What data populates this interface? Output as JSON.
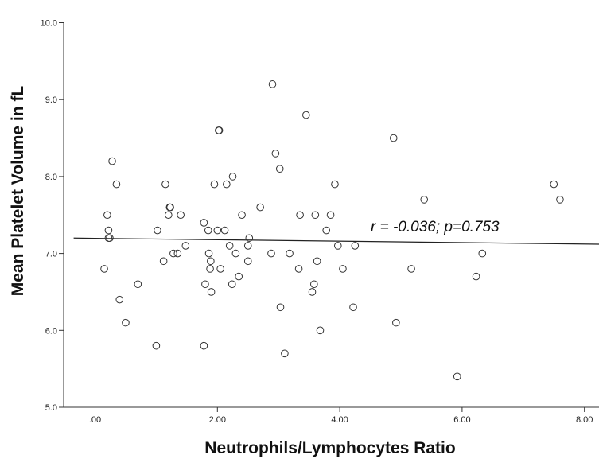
{
  "chart_data": {
    "type": "scatter",
    "xlabel": "Neutrophils/Lymphocytes Ratio",
    "ylabel": "Mean Platelet Volume in fL",
    "xlim": [
      -0.35,
      8.35
    ],
    "ylim": [
      5.0,
      10.0
    ],
    "x_ticks": [
      0,
      2,
      4,
      6,
      8
    ],
    "x_tick_labels": [
      ".00",
      "2.00",
      "4.00",
      "6.00",
      "8.00"
    ],
    "y_ticks": [
      5,
      6,
      7,
      8,
      9,
      10
    ],
    "y_tick_labels": [
      "5.0",
      "6.0",
      "7.0",
      "8.0",
      "9.0",
      "10.0"
    ],
    "grid": false,
    "annotation": "r = -0.036; p=0.753",
    "fit_line": {
      "x": [
        -0.35,
        8.35
      ],
      "y": [
        7.2,
        7.12
      ]
    },
    "points": [
      [
        0.15,
        6.8
      ],
      [
        0.2,
        7.5
      ],
      [
        0.22,
        7.3
      ],
      [
        0.22,
        7.2
      ],
      [
        0.24,
        7.2
      ],
      [
        0.28,
        8.2
      ],
      [
        0.35,
        7.9
      ],
      [
        0.4,
        6.4
      ],
      [
        0.5,
        6.1
      ],
      [
        0.7,
        6.6
      ],
      [
        1.0,
        5.8
      ],
      [
        1.02,
        7.3
      ],
      [
        1.12,
        6.9
      ],
      [
        1.15,
        7.9
      ],
      [
        1.2,
        7.5
      ],
      [
        1.22,
        7.6
      ],
      [
        1.23,
        7.6
      ],
      [
        1.28,
        7.0
      ],
      [
        1.35,
        7.0
      ],
      [
        1.4,
        7.5
      ],
      [
        1.48,
        7.1
      ],
      [
        1.78,
        7.4
      ],
      [
        1.8,
        6.6
      ],
      [
        1.78,
        5.8
      ],
      [
        1.85,
        7.3
      ],
      [
        1.86,
        7.0
      ],
      [
        1.88,
        6.8
      ],
      [
        1.89,
        6.9
      ],
      [
        1.9,
        6.5
      ],
      [
        1.95,
        7.9
      ],
      [
        2.0,
        7.3
      ],
      [
        2.02,
        8.6
      ],
      [
        2.03,
        8.6
      ],
      [
        2.05,
        6.8
      ],
      [
        2.12,
        7.3
      ],
      [
        2.15,
        7.9
      ],
      [
        2.2,
        7.1
      ],
      [
        2.25,
        8.0
      ],
      [
        2.24,
        6.6
      ],
      [
        2.3,
        7.0
      ],
      [
        2.35,
        6.7
      ],
      [
        2.4,
        7.5
      ],
      [
        2.5,
        6.9
      ],
      [
        2.5,
        7.1
      ],
      [
        2.52,
        7.2
      ],
      [
        2.7,
        7.6
      ],
      [
        2.88,
        7.0
      ],
      [
        2.9,
        9.2
      ],
      [
        2.95,
        8.3
      ],
      [
        3.02,
        8.1
      ],
      [
        3.03,
        6.3
      ],
      [
        3.1,
        5.7
      ],
      [
        3.18,
        7.0
      ],
      [
        3.33,
        6.8
      ],
      [
        3.35,
        7.5
      ],
      [
        3.45,
        8.8
      ],
      [
        3.55,
        6.5
      ],
      [
        3.58,
        6.6
      ],
      [
        3.6,
        7.5
      ],
      [
        3.63,
        6.9
      ],
      [
        3.68,
        6.0
      ],
      [
        3.78,
        7.3
      ],
      [
        3.85,
        7.5
      ],
      [
        3.92,
        7.9
      ],
      [
        3.97,
        7.1
      ],
      [
        4.05,
        6.8
      ],
      [
        4.22,
        6.3
      ],
      [
        4.25,
        7.1
      ],
      [
        4.88,
        8.5
      ],
      [
        4.92,
        6.1
      ],
      [
        5.17,
        6.8
      ],
      [
        5.38,
        7.7
      ],
      [
        5.92,
        5.4
      ],
      [
        6.23,
        6.7
      ],
      [
        6.33,
        7.0
      ],
      [
        7.5,
        7.9
      ],
      [
        7.6,
        7.7
      ]
    ]
  }
}
